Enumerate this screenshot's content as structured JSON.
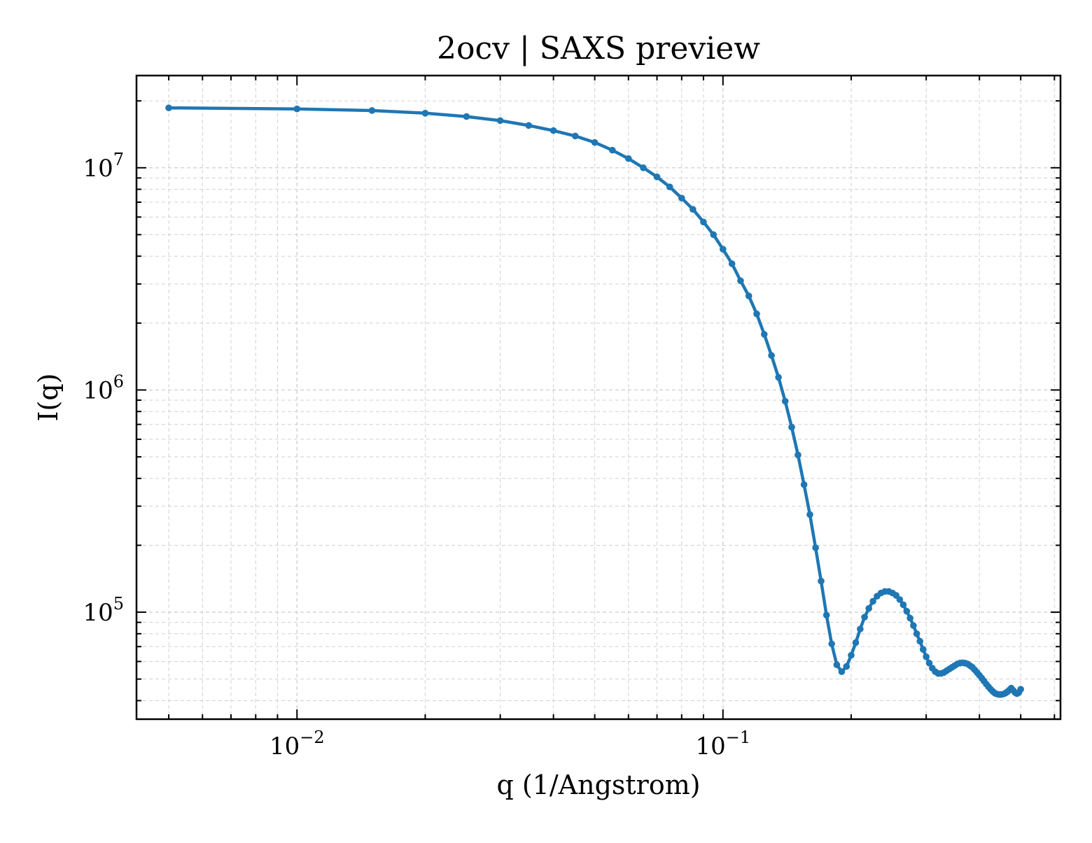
{
  "chart_data": {
    "type": "line",
    "title": "2ocv | SAXS preview",
    "xlabel": "q (1/Angstrom)",
    "ylabel": "I(q)",
    "xscale": "log",
    "yscale": "log",
    "xlim": [
      0.0042,
      0.62
    ],
    "ylim": [
      33000,
      26000000
    ],
    "grid": true,
    "legend": "none",
    "line_color": "#1f77b4",
    "x_tick_labels": [
      {
        "value": 0.01,
        "base": "10",
        "exp": "−2"
      },
      {
        "value": 0.1,
        "base": "10",
        "exp": "−1"
      }
    ],
    "y_tick_labels": [
      {
        "value": 100000,
        "base": "10",
        "exp": "5"
      },
      {
        "value": 1000000,
        "base": "10",
        "exp": "6"
      },
      {
        "value": 10000000,
        "base": "10",
        "exp": "7"
      }
    ],
    "series": [
      {
        "x": [
          0.005,
          0.01,
          0.015,
          0.02,
          0.025,
          0.03,
          0.035,
          0.04,
          0.045,
          0.05,
          0.055,
          0.06,
          0.065,
          0.07,
          0.075,
          0.08,
          0.085,
          0.09,
          0.095,
          0.1,
          0.105,
          0.11,
          0.115,
          0.12,
          0.125,
          0.13,
          0.135,
          0.14,
          0.145,
          0.15,
          0.155,
          0.16,
          0.165,
          0.17,
          0.175,
          0.18,
          0.185,
          0.19,
          0.195,
          0.2,
          0.205,
          0.21,
          0.215,
          0.22,
          0.225,
          0.23,
          0.235,
          0.24,
          0.245,
          0.25,
          0.255,
          0.26,
          0.265,
          0.27,
          0.275,
          0.28,
          0.285,
          0.29,
          0.295,
          0.3,
          0.305,
          0.31,
          0.315,
          0.32,
          0.325,
          0.33,
          0.335,
          0.34,
          0.345,
          0.35,
          0.355,
          0.36,
          0.365,
          0.37,
          0.375,
          0.38,
          0.385,
          0.39,
          0.395,
          0.4,
          0.405,
          0.41,
          0.415,
          0.42,
          0.425,
          0.43,
          0.435,
          0.44,
          0.445,
          0.45,
          0.455,
          0.46,
          0.465,
          0.47,
          0.475,
          0.48,
          0.485,
          0.49,
          0.495,
          0.5
        ],
        "y": [
          18600000,
          18400000,
          18100000,
          17600000,
          17000000,
          16300000,
          15500000,
          14700000,
          13900000,
          13000000,
          12000000,
          11000000,
          10000000,
          9100000,
          8200000,
          7300000,
          6500000,
          5700000,
          5000000,
          4300000,
          3700000,
          3100000,
          2650000,
          2200000,
          1780000,
          1430000,
          1140000,
          890000,
          680000,
          510000,
          375000,
          275000,
          195000,
          138000,
          97000,
          72000,
          58000,
          54000,
          57000,
          64000,
          73000,
          84000,
          95000,
          104000,
          112000,
          118000,
          122000,
          124000,
          124000,
          122000,
          119000,
          114000,
          108000,
          101000,
          94000,
          87000,
          80000,
          74000,
          68000,
          63000,
          59000,
          56000,
          54000,
          53000,
          53000,
          53500,
          54500,
          55500,
          56500,
          57500,
          58500,
          59000,
          59200,
          59000,
          58500,
          57500,
          56500,
          55000,
          53500,
          52000,
          50500,
          49000,
          47500,
          46200,
          45000,
          44000,
          43200,
          42800,
          42600,
          42600,
          42800,
          43200,
          43800,
          44600,
          45500,
          44500,
          43500,
          43000,
          43500,
          45000
        ]
      }
    ]
  }
}
